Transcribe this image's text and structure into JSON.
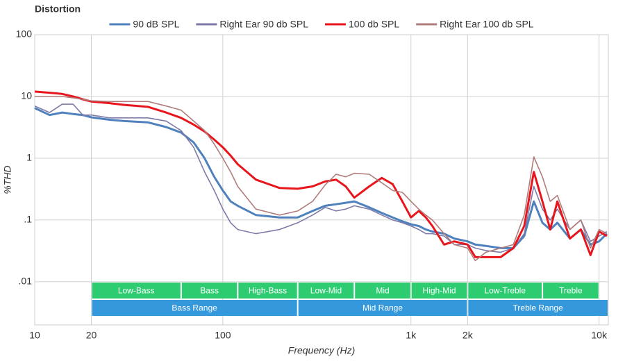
{
  "chart_data": {
    "type": "line",
    "title": "Distortion",
    "x_label": "Frequency (Hz)",
    "y_label": "%THD",
    "xscale": "log",
    "yscale": "log",
    "grid": true,
    "legend": "top",
    "xlim": [
      10,
      11200
    ],
    "ylim": [
      0.002,
      100
    ],
    "xticks": [
      10,
      20,
      100,
      {
        "value": 1000,
        "label": "1k"
      },
      {
        "value": 2000,
        "label": "2k"
      },
      {
        "value": 10000,
        "label": "10k"
      }
    ],
    "yticks": [
      100,
      10,
      1,
      {
        "value": 0.1,
        "label": ".1"
      },
      {
        "value": 0.01,
        "label": ".01"
      }
    ],
    "x": [
      10,
      12,
      14,
      16,
      18,
      20,
      25,
      30,
      40,
      50,
      60,
      70,
      80,
      90,
      100,
      110,
      120,
      150,
      200,
      250,
      300,
      350,
      400,
      450,
      500,
      600,
      700,
      800,
      900,
      1000,
      1100,
      1200,
      1300,
      1500,
      1700,
      2000,
      2200,
      2500,
      3000,
      3500,
      4000,
      4500,
      5000,
      5500,
      6000,
      7000,
      8000,
      9000,
      10000,
      11000
    ],
    "series": [
      {
        "name": "90 dB SPL",
        "color": "#4f81bd",
        "width": 3,
        "values": [
          6.5,
          5,
          5.5,
          5.2,
          5,
          4.6,
          4.2,
          4,
          3.8,
          3.2,
          2.6,
          1.8,
          1,
          0.5,
          0.3,
          0.2,
          0.17,
          0.12,
          0.11,
          0.11,
          0.14,
          0.17,
          0.18,
          0.19,
          0.2,
          0.16,
          0.13,
          0.11,
          0.095,
          0.085,
          0.08,
          0.07,
          0.065,
          0.06,
          0.05,
          0.045,
          0.04,
          0.038,
          0.035,
          0.035,
          0.055,
          0.2,
          0.09,
          0.07,
          0.09,
          0.05,
          0.07,
          0.04,
          0.045,
          0.06
        ]
      },
      {
        "name": "Right Ear 90 db SPL",
        "color": "#7d7aa8",
        "width": 1.6,
        "values": [
          7,
          5.5,
          7.5,
          7.5,
          5,
          5,
          4.5,
          4.5,
          4.5,
          4,
          2.8,
          1.5,
          0.6,
          0.3,
          0.15,
          0.09,
          0.07,
          0.06,
          0.07,
          0.09,
          0.12,
          0.16,
          0.14,
          0.15,
          0.17,
          0.15,
          0.12,
          0.1,
          0.09,
          0.08,
          0.07,
          0.06,
          0.06,
          0.055,
          0.04,
          0.04,
          0.035,
          0.032,
          0.03,
          0.035,
          0.06,
          0.35,
          0.15,
          0.1,
          0.15,
          0.07,
          0.1,
          0.045,
          0.055,
          0.065
        ]
      },
      {
        "name": "100 db SPL",
        "color": "#e8161c",
        "width": 3,
        "values": [
          12,
          11.5,
          11,
          10,
          9,
          8.3,
          7.8,
          7.3,
          6.8,
          5.5,
          4.5,
          3.5,
          2.7,
          2,
          1.5,
          1.1,
          0.8,
          0.45,
          0.33,
          0.32,
          0.35,
          0.42,
          0.45,
          0.35,
          0.23,
          0.35,
          0.48,
          0.38,
          0.2,
          0.11,
          0.14,
          0.11,
          0.08,
          0.04,
          0.045,
          0.04,
          0.025,
          0.025,
          0.025,
          0.035,
          0.08,
          0.6,
          0.2,
          0.07,
          0.2,
          0.05,
          0.07,
          0.027,
          0.065,
          0.055
        ]
      },
      {
        "name": "Right Ear 100 db SPL",
        "color": "#b07c7c",
        "width": 1.6,
        "values": [
          10,
          10,
          10,
          9.5,
          9,
          8.5,
          8.3,
          8.3,
          8.3,
          7,
          6,
          4,
          2.8,
          1.7,
          1,
          0.6,
          0.35,
          0.15,
          0.12,
          0.14,
          0.2,
          0.37,
          0.55,
          0.5,
          0.57,
          0.55,
          0.4,
          0.3,
          0.28,
          0.2,
          0.15,
          0.12,
          0.1,
          0.06,
          0.04,
          0.035,
          0.022,
          0.03,
          0.035,
          0.04,
          0.12,
          1.05,
          0.5,
          0.2,
          0.25,
          0.07,
          0.1,
          0.035,
          0.07,
          0.06
        ]
      }
    ],
    "bands": [
      {
        "label": "Low-Bass",
        "range": [
          20,
          60
        ],
        "color": "#2ecc71"
      },
      {
        "label": "Bass",
        "range": [
          60,
          120
        ],
        "color": "#2ecc71"
      },
      {
        "label": "High-Bass",
        "range": [
          120,
          250
        ],
        "color": "#2ecc71"
      },
      {
        "label": "Low-Mid",
        "range": [
          250,
          500
        ],
        "color": "#2ecc71"
      },
      {
        "label": "Mid",
        "range": [
          500,
          1000
        ],
        "color": "#2ecc71"
      },
      {
        "label": "High-Mid",
        "range": [
          1000,
          2000
        ],
        "color": "#2ecc71"
      },
      {
        "label": "Low-Treble",
        "range": [
          2000,
          5000
        ],
        "color": "#2ecc71"
      },
      {
        "label": "Treble",
        "range": [
          5000,
          10000
        ],
        "color": "#2ecc71"
      }
    ],
    "ranges": [
      {
        "label": "Bass Range",
        "range": [
          20,
          250
        ],
        "color": "#3498db"
      },
      {
        "label": "Mid Range",
        "range": [
          250,
          2000
        ],
        "color": "#3498db"
      },
      {
        "label": "Treble Range",
        "range": [
          2000,
          11200
        ],
        "color": "#3498db"
      }
    ]
  }
}
